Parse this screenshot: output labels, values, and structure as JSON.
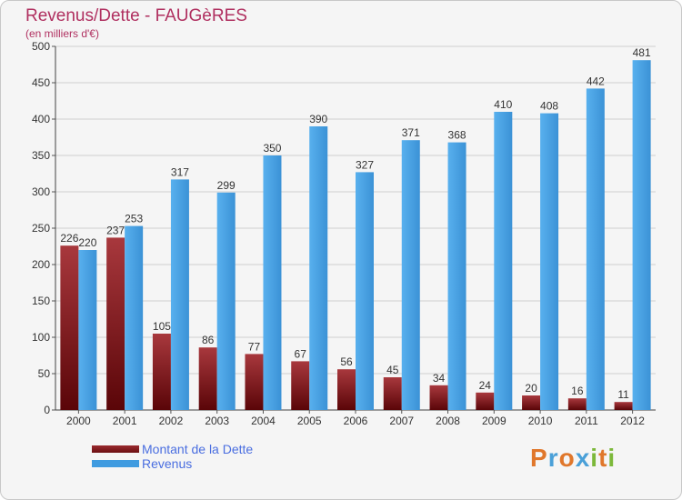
{
  "title": "Revenus/Dette - FAUGèRES",
  "subtitle": "(en milliers d'€)",
  "colors": {
    "dette": "#6b0f12",
    "revenus": "#3f9be0",
    "title": "#b03060",
    "legend_text": "#4a6ee0"
  },
  "legend": {
    "items": [
      "Montant de la Dette",
      "Revenus"
    ]
  },
  "logo": {
    "letters": [
      "P",
      "r",
      "o",
      "x",
      "i",
      "t",
      "i"
    ],
    "colors": [
      "#e0772b",
      "#4aa0d8",
      "#e0772b",
      "#4aa0d8",
      "#7cb83a",
      "#e0772b",
      "#7cb83a"
    ]
  },
  "chart_data": {
    "type": "bar",
    "categories": [
      "2000",
      "2001",
      "2002",
      "2003",
      "2004",
      "2005",
      "2006",
      "2007",
      "2008",
      "2009",
      "2010",
      "2011",
      "2012"
    ],
    "series": [
      {
        "name": "Montant de la Dette",
        "values": [
          226,
          237,
          105,
          86,
          77,
          67,
          56,
          45,
          34,
          24,
          20,
          16,
          11
        ]
      },
      {
        "name": "Revenus",
        "values": [
          220,
          253,
          317,
          299,
          350,
          390,
          327,
          371,
          368,
          410,
          408,
          442,
          481
        ]
      }
    ],
    "ylim": [
      0,
      500
    ],
    "yticks": [
      0,
      50,
      100,
      150,
      200,
      250,
      300,
      350,
      400,
      450,
      500
    ],
    "grid": true,
    "legend_position": "bottom-left"
  }
}
